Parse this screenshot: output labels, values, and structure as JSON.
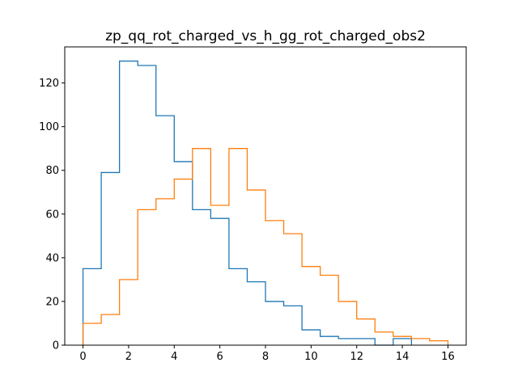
{
  "chart_data": {
    "type": "histogram",
    "title": "zp_qq_rot_charged_vs_h_gg_rot_charged_obs2",
    "xlabel": "",
    "ylabel": "",
    "xlim": [
      -0.8,
      16.8
    ],
    "ylim": [
      0,
      136.5
    ],
    "xticks": [
      0,
      2,
      4,
      6,
      8,
      10,
      12,
      14,
      16
    ],
    "yticks": [
      0,
      20,
      40,
      60,
      80,
      100,
      120
    ],
    "grid": false,
    "legend": "none",
    "series": [
      {
        "color": "#1f77b4",
        "bin_edges": [
          0,
          0.8,
          1.6,
          2.4,
          3.2,
          4.0,
          4.8,
          5.6,
          6.4,
          7.2,
          8.0,
          8.8,
          9.6,
          10.4,
          11.2,
          12.0,
          12.8,
          13.6,
          14.4
        ],
        "counts": [
          35,
          79,
          130,
          128,
          105,
          84,
          62,
          58,
          35,
          29,
          20,
          18,
          7,
          4,
          3,
          3,
          0,
          3
        ]
      },
      {
        "color": "#ff7f0e",
        "bin_edges": [
          0,
          0.8,
          1.6,
          2.4,
          3.2,
          4.0,
          4.8,
          5.6,
          6.4,
          7.2,
          8.0,
          8.8,
          9.6,
          10.4,
          11.2,
          12.0,
          12.8,
          13.6,
          14.4,
          15.2,
          16.0
        ],
        "counts": [
          10,
          14,
          30,
          62,
          67,
          76,
          90,
          64,
          90,
          71,
          57,
          51,
          36,
          32,
          20,
          12,
          6,
          4,
          3,
          2
        ]
      }
    ]
  }
}
